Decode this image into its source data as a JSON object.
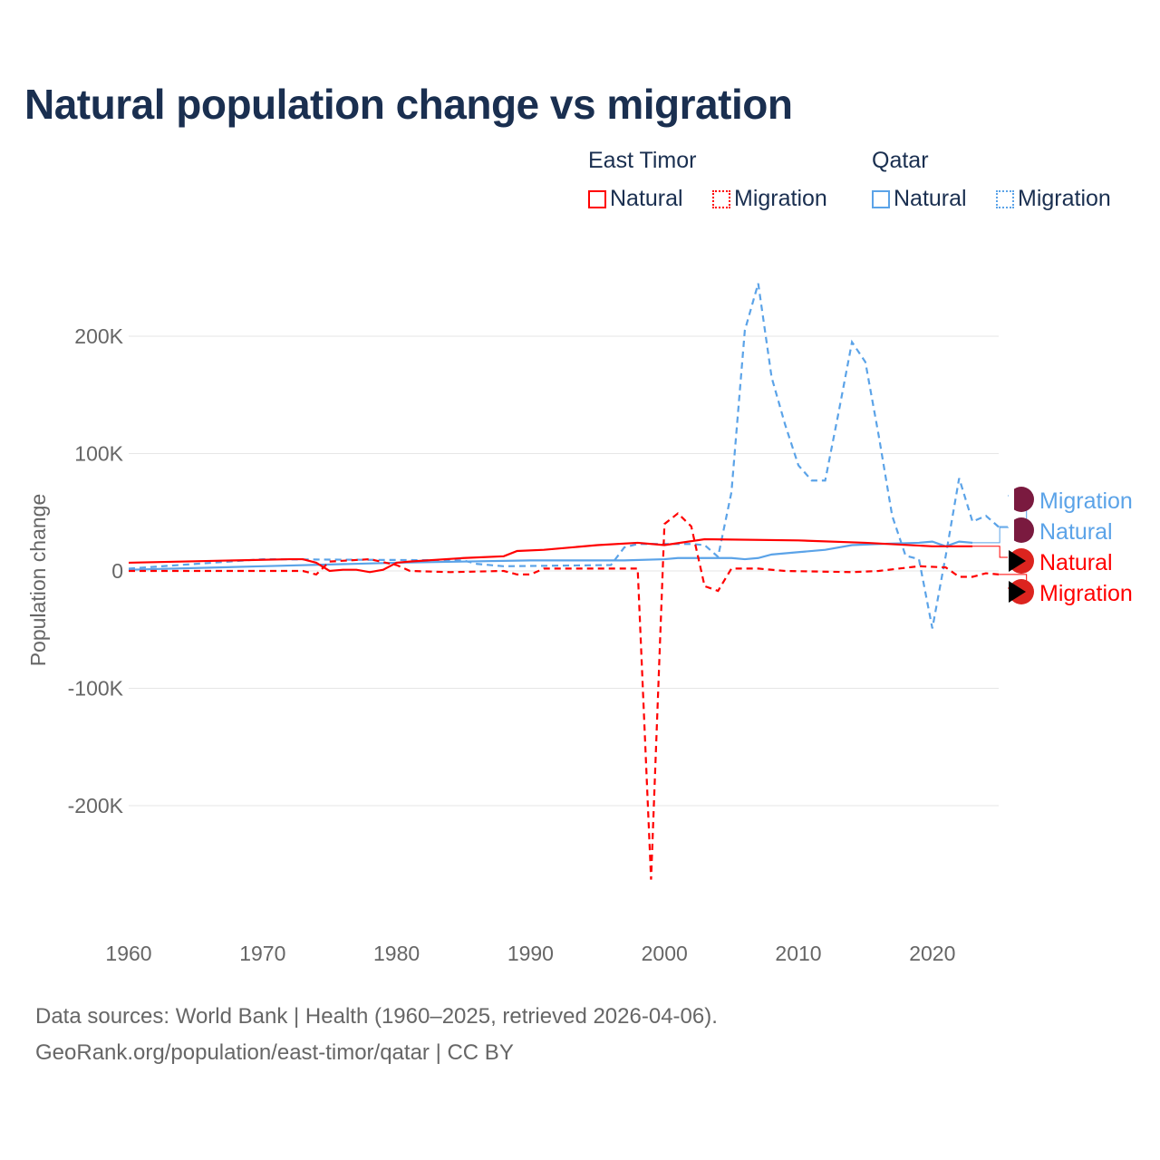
{
  "title": "Natural population change vs migration",
  "legend": {
    "groups": [
      {
        "name": "East Timor",
        "items": [
          "Natural",
          "Migration"
        ]
      },
      {
        "name": "Qatar",
        "items": [
          "Natural",
          "Migration"
        ]
      }
    ]
  },
  "footer": {
    "line1": "Data sources: World Bank | Health (1960–2025, retrieved 2026-04-06).",
    "line2": "GeoRank.org/population/east-timor/qatar | CC BY"
  },
  "chart_data": {
    "type": "line",
    "title": "Natural population change vs migration",
    "xlabel": "",
    "ylabel": "Population change",
    "xlim": [
      1960,
      2025
    ],
    "ylim": [
      -280000,
      260000
    ],
    "xticks": [
      1960,
      1970,
      1980,
      1990,
      2000,
      2010,
      2020
    ],
    "yticks": [
      {
        "v": 200000,
        "l": "200K"
      },
      {
        "v": 100000,
        "l": "100K"
      },
      {
        "v": 0,
        "l": "0"
      },
      {
        "v": -100000,
        "l": "-100K"
      },
      {
        "v": -200000,
        "l": "-200K"
      }
    ],
    "series": [
      {
        "name": "Migration",
        "country": "Qatar",
        "color": "#5ba3e8",
        "dash": true,
        "points": [
          [
            1960,
            2000
          ],
          [
            1970,
            10000
          ],
          [
            1985,
            9000
          ],
          [
            1986,
            6000
          ],
          [
            1988,
            4000
          ],
          [
            1996,
            5000
          ],
          [
            1997,
            20000
          ],
          [
            1998,
            23000
          ],
          [
            2002,
            23000
          ],
          [
            2003,
            22000
          ],
          [
            2004,
            12000
          ],
          [
            2005,
            67000
          ],
          [
            2006,
            205000
          ],
          [
            2007,
            245000
          ],
          [
            2008,
            165000
          ],
          [
            2009,
            125000
          ],
          [
            2010,
            90000
          ],
          [
            2011,
            77000
          ],
          [
            2012,
            77000
          ],
          [
            2013,
            135000
          ],
          [
            2014,
            195000
          ],
          [
            2015,
            178000
          ],
          [
            2016,
            115000
          ],
          [
            2017,
            47000
          ],
          [
            2018,
            13000
          ],
          [
            2019,
            10000
          ],
          [
            2020,
            -49000
          ],
          [
            2021,
            13000
          ],
          [
            2022,
            79000
          ],
          [
            2023,
            42000
          ],
          [
            2024,
            47000
          ],
          [
            2025,
            37000
          ]
        ]
      },
      {
        "name": "Natural",
        "country": "Qatar",
        "color": "#5ba3e8",
        "dash": false,
        "points": [
          [
            1960,
            1000
          ],
          [
            1970,
            4000
          ],
          [
            1980,
            7000
          ],
          [
            1990,
            9000
          ],
          [
            1997,
            9000
          ],
          [
            2000,
            10000
          ],
          [
            2001,
            11000
          ],
          [
            2005,
            11000
          ],
          [
            2006,
            10000
          ],
          [
            2007,
            11000
          ],
          [
            2008,
            14000
          ],
          [
            2010,
            16000
          ],
          [
            2012,
            18000
          ],
          [
            2014,
            22000
          ],
          [
            2016,
            23000
          ],
          [
            2019,
            24000
          ],
          [
            2020,
            25000
          ],
          [
            2021,
            21000
          ],
          [
            2022,
            25000
          ],
          [
            2023,
            24000
          ]
        ]
      },
      {
        "name": "Natural",
        "country": "East Timor",
        "color": "#ff0000",
        "dash": false,
        "points": [
          [
            1960,
            7000
          ],
          [
            1972,
            10000
          ],
          [
            1973,
            10000
          ],
          [
            1974,
            7000
          ],
          [
            1975,
            0
          ],
          [
            1976,
            1000
          ],
          [
            1977,
            1000
          ],
          [
            1978,
            -1000
          ],
          [
            1979,
            1000
          ],
          [
            1980,
            7000
          ],
          [
            1981,
            8000
          ],
          [
            1985,
            11000
          ],
          [
            1988,
            12500
          ],
          [
            1989,
            17000
          ],
          [
            1991,
            18000
          ],
          [
            1995,
            22000
          ],
          [
            1998,
            24000
          ],
          [
            2000,
            22000
          ],
          [
            2003,
            27000
          ],
          [
            2010,
            26000
          ],
          [
            2015,
            24000
          ],
          [
            2020,
            21000
          ],
          [
            2023,
            21000
          ]
        ]
      },
      {
        "name": "Migration",
        "country": "East Timor",
        "color": "#ff0000",
        "dash": true,
        "points": [
          [
            1960,
            0
          ],
          [
            1973,
            0
          ],
          [
            1974,
            -3000
          ],
          [
            1975,
            8000
          ],
          [
            1978,
            10000
          ],
          [
            1980,
            5000
          ],
          [
            1981,
            0
          ],
          [
            1984,
            -1000
          ],
          [
            1988,
            0
          ],
          [
            1989,
            -3000
          ],
          [
            1990,
            -3000
          ],
          [
            1991,
            2000
          ],
          [
            1998,
            2000
          ],
          [
            1999,
            -263000
          ],
          [
            2000,
            40000
          ],
          [
            2001,
            49000
          ],
          [
            2002,
            38000
          ],
          [
            2003,
            -13000
          ],
          [
            2004,
            -17000
          ],
          [
            2005,
            2000
          ],
          [
            2007,
            2000
          ],
          [
            2009,
            0
          ],
          [
            2014,
            -1000
          ],
          [
            2016,
            0
          ],
          [
            2019,
            4000
          ],
          [
            2021,
            3000
          ],
          [
            2022,
            -5000
          ],
          [
            2023,
            -5000
          ],
          [
            2024,
            -2000
          ],
          [
            2025,
            -3000
          ]
        ]
      }
    ]
  }
}
